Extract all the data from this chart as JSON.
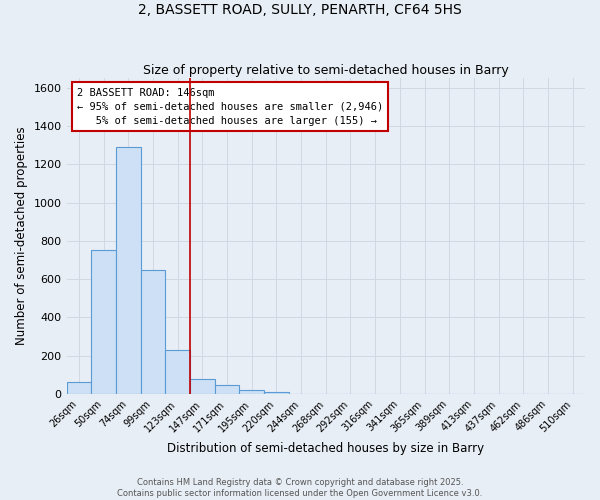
{
  "title1": "2, BASSETT ROAD, SULLY, PENARTH, CF64 5HS",
  "title2": "Size of property relative to semi-detached houses in Barry",
  "xlabel": "Distribution of semi-detached houses by size in Barry",
  "ylabel": "Number of semi-detached properties",
  "bar_labels": [
    "26sqm",
    "50sqm",
    "74sqm",
    "99sqm",
    "123sqm",
    "147sqm",
    "171sqm",
    "195sqm",
    "220sqm",
    "244sqm",
    "268sqm",
    "292sqm",
    "316sqm",
    "341sqm",
    "365sqm",
    "389sqm",
    "413sqm",
    "437sqm",
    "462sqm",
    "486sqm",
    "510sqm"
  ],
  "bar_values": [
    60,
    750,
    1290,
    650,
    230,
    80,
    45,
    20,
    10,
    0,
    0,
    0,
    0,
    0,
    0,
    0,
    0,
    0,
    0,
    0,
    0
  ],
  "bar_width": 1.0,
  "bar_color": "#cde0f5",
  "bar_edge_color": "#5b9bd5",
  "subject_line_color": "#c00000",
  "annotation_text": "2 BASSETT ROAD: 146sqm\n← 95% of semi-detached houses are smaller (2,946)\n   5% of semi-detached houses are larger (155) →",
  "annotation_box_color": "#ffffff",
  "annotation_box_edge_color": "#c00000",
  "ylim": [
    0,
    1650
  ],
  "yticks": [
    0,
    200,
    400,
    600,
    800,
    1000,
    1200,
    1400,
    1600
  ],
  "grid_color": "#d0d8e4",
  "background_color": "#e8eef5",
  "footer1": "Contains HM Land Registry data © Crown copyright and database right 2025.",
  "footer2": "Contains public sector information licensed under the Open Government Licence v3.0."
}
